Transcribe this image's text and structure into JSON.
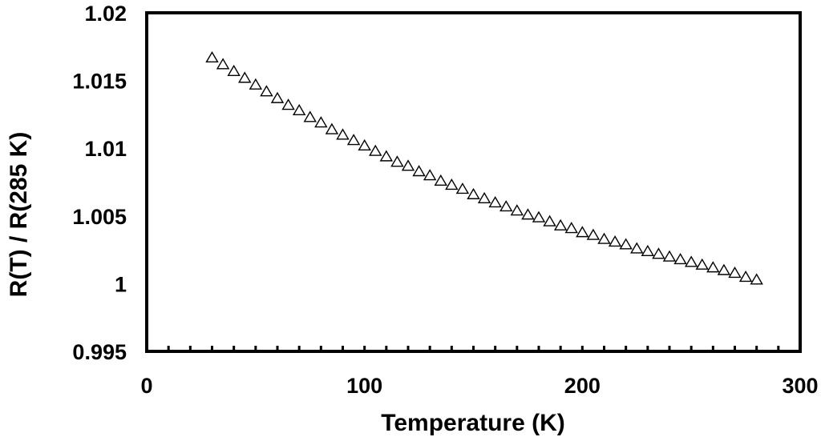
{
  "chart_data": {
    "type": "scatter",
    "xlabel": "Temperature (K)",
    "ylabel": "R(T) / R(285 K)",
    "xlim": [
      0,
      300
    ],
    "ylim": [
      0.995,
      1.02
    ],
    "x_ticks": [
      "0",
      "100",
      "200",
      "300"
    ],
    "y_ticks": [
      "0.995",
      "1",
      "1.005",
      "1.01",
      "1.015",
      "1.02"
    ],
    "marker": "open-triangle",
    "grid": false,
    "series": [
      {
        "x": [
          30,
          35,
          40,
          45,
          50,
          55,
          60,
          65,
          70,
          75,
          80,
          85,
          90,
          95,
          100,
          105,
          110,
          115,
          120,
          125,
          130,
          135,
          140,
          145,
          150,
          155,
          160,
          165,
          170,
          175,
          180,
          185,
          190,
          195,
          200,
          205,
          210,
          215,
          220,
          225,
          230,
          235,
          240,
          245,
          250,
          255,
          260,
          265,
          270,
          275,
          280
        ],
        "y": [
          1.0167,
          1.0162,
          1.0157,
          1.0152,
          1.0147,
          1.0142,
          1.0137,
          1.0132,
          1.0128,
          1.0123,
          1.0119,
          1.0114,
          1.011,
          1.0106,
          1.0102,
          1.0098,
          1.0094,
          1.009,
          1.0087,
          1.0083,
          1.008,
          1.0076,
          1.0073,
          1.007,
          1.0066,
          1.0063,
          1.006,
          1.0057,
          1.0054,
          1.0051,
          1.0049,
          1.0046,
          1.0043,
          1.0041,
          1.0038,
          1.0036,
          1.0033,
          1.0031,
          1.0029,
          1.0026,
          1.0024,
          1.0022,
          1.002,
          1.0018,
          1.0016,
          1.0014,
          1.0012,
          1.001,
          1.0008,
          1.0005,
          1.0003
        ]
      }
    ]
  }
}
